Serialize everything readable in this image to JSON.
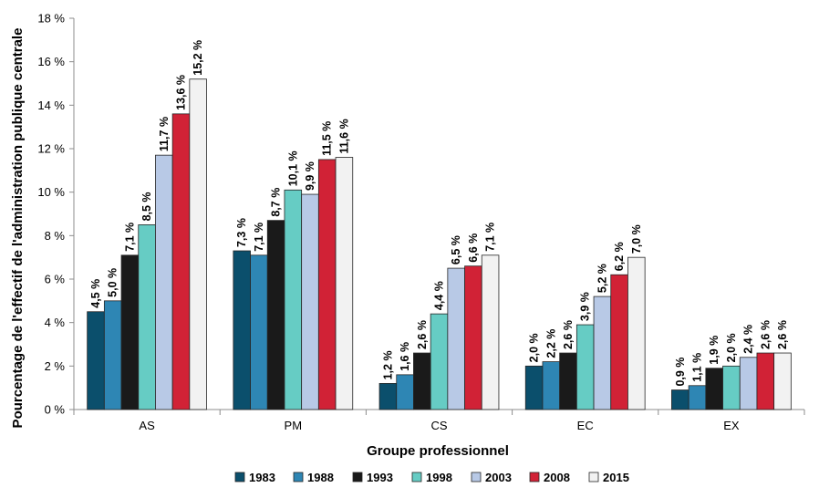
{
  "chart_data": {
    "type": "bar",
    "title": "",
    "xlabel": "Groupe professionnel",
    "ylabel": "Pourcentage de l'effectif de l'administration publique centrale",
    "categories": [
      "AS",
      "PM",
      "CS",
      "EC",
      "EX"
    ],
    "ylim": [
      0,
      18
    ],
    "yticks": [
      "0 %",
      "2 %",
      "4 %",
      "6 %",
      "8 %",
      "10 %",
      "12 %",
      "14 %",
      "16 %",
      "18 %"
    ],
    "grid": false,
    "legend": "bottom",
    "series": [
      {
        "name": "1983",
        "color": "#0b4f6c",
        "values": [
          4.5,
          7.3,
          1.2,
          2.0,
          0.9
        ],
        "labels": [
          "4,5 %",
          "7,3 %",
          "1,2 %",
          "2,0 %",
          "0,9 %"
        ]
      },
      {
        "name": "1988",
        "color": "#2e86b4",
        "values": [
          5.0,
          7.1,
          1.6,
          2.2,
          1.1
        ],
        "labels": [
          "5,0 %",
          "7,1 %",
          "1,6 %",
          "2,2 %",
          "1,1 %"
        ]
      },
      {
        "name": "1993",
        "color": "#1a1a1a",
        "values": [
          7.1,
          8.7,
          2.6,
          2.6,
          1.9
        ],
        "labels": [
          "7,1 %",
          "8,7 %",
          "2,6 %",
          "2,6 %",
          "1,9 %"
        ]
      },
      {
        "name": "1998",
        "color": "#66ccc4",
        "values": [
          8.5,
          10.1,
          4.4,
          3.9,
          2.0
        ],
        "labels": [
          "8,5 %",
          "10,1 %",
          "4,4 %",
          "3,9 %",
          "2,0 %"
        ]
      },
      {
        "name": "2003",
        "color": "#b8c9e6",
        "values": [
          11.7,
          9.9,
          6.5,
          5.2,
          2.4
        ],
        "labels": [
          "11,7 %",
          "9,9 %",
          "6,5 %",
          "5,2 %",
          "2,4 %"
        ]
      },
      {
        "name": "2008",
        "color": "#d12236",
        "values": [
          13.6,
          11.5,
          6.6,
          6.2,
          2.6
        ],
        "labels": [
          "13,6 %",
          "11,5 %",
          "6,6 %",
          "6,2 %",
          "2,6 %"
        ]
      },
      {
        "name": "2015",
        "color": "#f2f2f2",
        "values": [
          15.2,
          11.6,
          7.1,
          7.0,
          2.6
        ],
        "labels": [
          "15,2 %",
          "11,6 %",
          "7,1 %",
          "7,0 %",
          "2,6 %"
        ]
      }
    ]
  }
}
